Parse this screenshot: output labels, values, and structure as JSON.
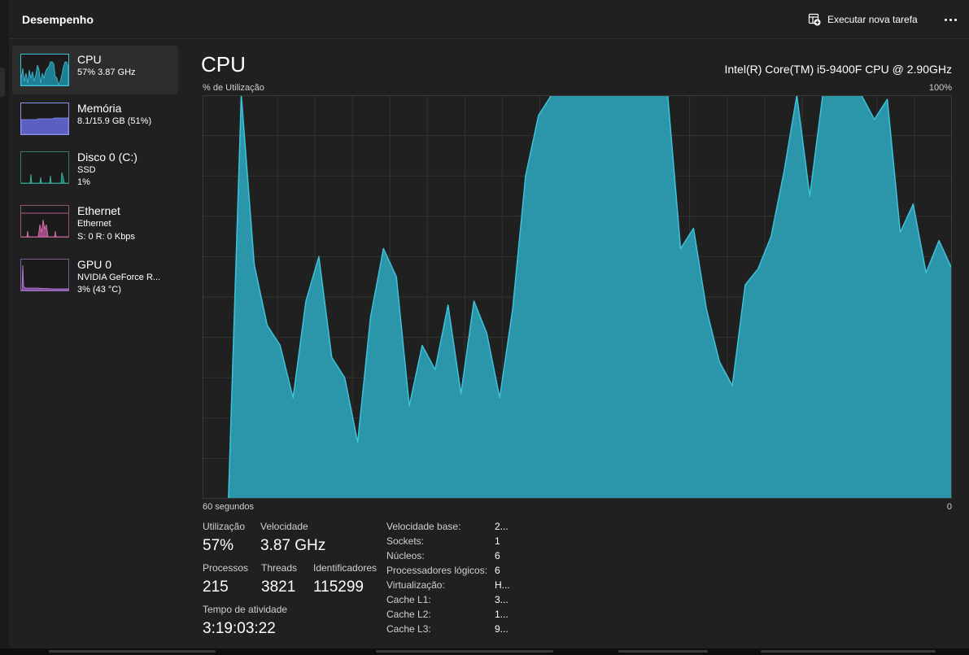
{
  "header": {
    "title": "Desempenho",
    "run_task_label": "Executar nova tarefa"
  },
  "sidebar": {
    "items": [
      {
        "name": "CPU",
        "sub1": "57% 3.87 GHz",
        "color": "#3dc0d8",
        "fill": "#1e7f92"
      },
      {
        "name": "Memória",
        "sub1": "8.1/15.9 GB (51%)",
        "color": "#8a8ff0",
        "fill": "#5a5fc0"
      },
      {
        "name": "Disco 0 (C:)",
        "sub1": "SSD",
        "sub2": "1%",
        "color": "#3dbfa6",
        "fill": "#1e7a6c"
      },
      {
        "name": "Ethernet",
        "sub1": "Ethernet",
        "sub2": "S: 0 R: 0 Kbps",
        "color": "#e276b4",
        "fill": "#a04a82"
      },
      {
        "name": "GPU 0",
        "sub1": "NVIDIA GeForce R...",
        "sub2": "3% (43 °C)",
        "color": "#c285e6",
        "fill": "#7a4a9a"
      }
    ]
  },
  "main": {
    "title": "CPU",
    "model": "Intel(R) Core(TM) i5-9400F CPU @ 2.90GHz",
    "util_label": "% de Utilização",
    "max_label": "100%",
    "time_left": "60 segundos",
    "time_right": "0",
    "graph_color": "#2b95aa",
    "graph_line": "#3dc3d9",
    "graph_series": [
      0,
      0,
      0,
      100,
      58,
      43,
      38,
      25,
      49,
      60,
      35,
      30,
      14,
      45,
      62,
      55,
      23,
      38,
      32,
      48,
      26,
      49,
      41,
      25,
      47,
      80,
      95,
      100,
      100,
      100,
      100,
      100,
      100,
      100,
      100,
      100,
      100,
      62,
      67,
      47,
      34,
      28,
      53,
      57,
      65,
      81,
      100,
      75,
      100,
      100,
      100,
      100,
      94,
      99,
      66,
      73,
      56,
      64,
      57
    ]
  },
  "stats": {
    "utilization_label": "Utilização",
    "utilization_value": "57%",
    "speed_label": "Velocidade",
    "speed_value": "3.87 GHz",
    "processes_label": "Processos",
    "processes_value": "215",
    "threads_label": "Threads",
    "threads_value": "3821",
    "handles_label": "Identificadores",
    "handles_value": "115299",
    "uptime_label": "Tempo de atividade",
    "uptime_value": "3:19:03:22"
  },
  "specs": [
    {
      "key": "Velocidade base:",
      "value": "2..."
    },
    {
      "key": "Sockets:",
      "value": "1"
    },
    {
      "key": "Núcleos:",
      "value": "6"
    },
    {
      "key": "Processadores lógicos:",
      "value": "6"
    },
    {
      "key": "Virtualização:",
      "value": "H..."
    },
    {
      "key": "Cache L1:",
      "value": "3..."
    },
    {
      "key": "Cache L2:",
      "value": "1..."
    },
    {
      "key": "Cache L3:",
      "value": "9..."
    }
  ]
}
